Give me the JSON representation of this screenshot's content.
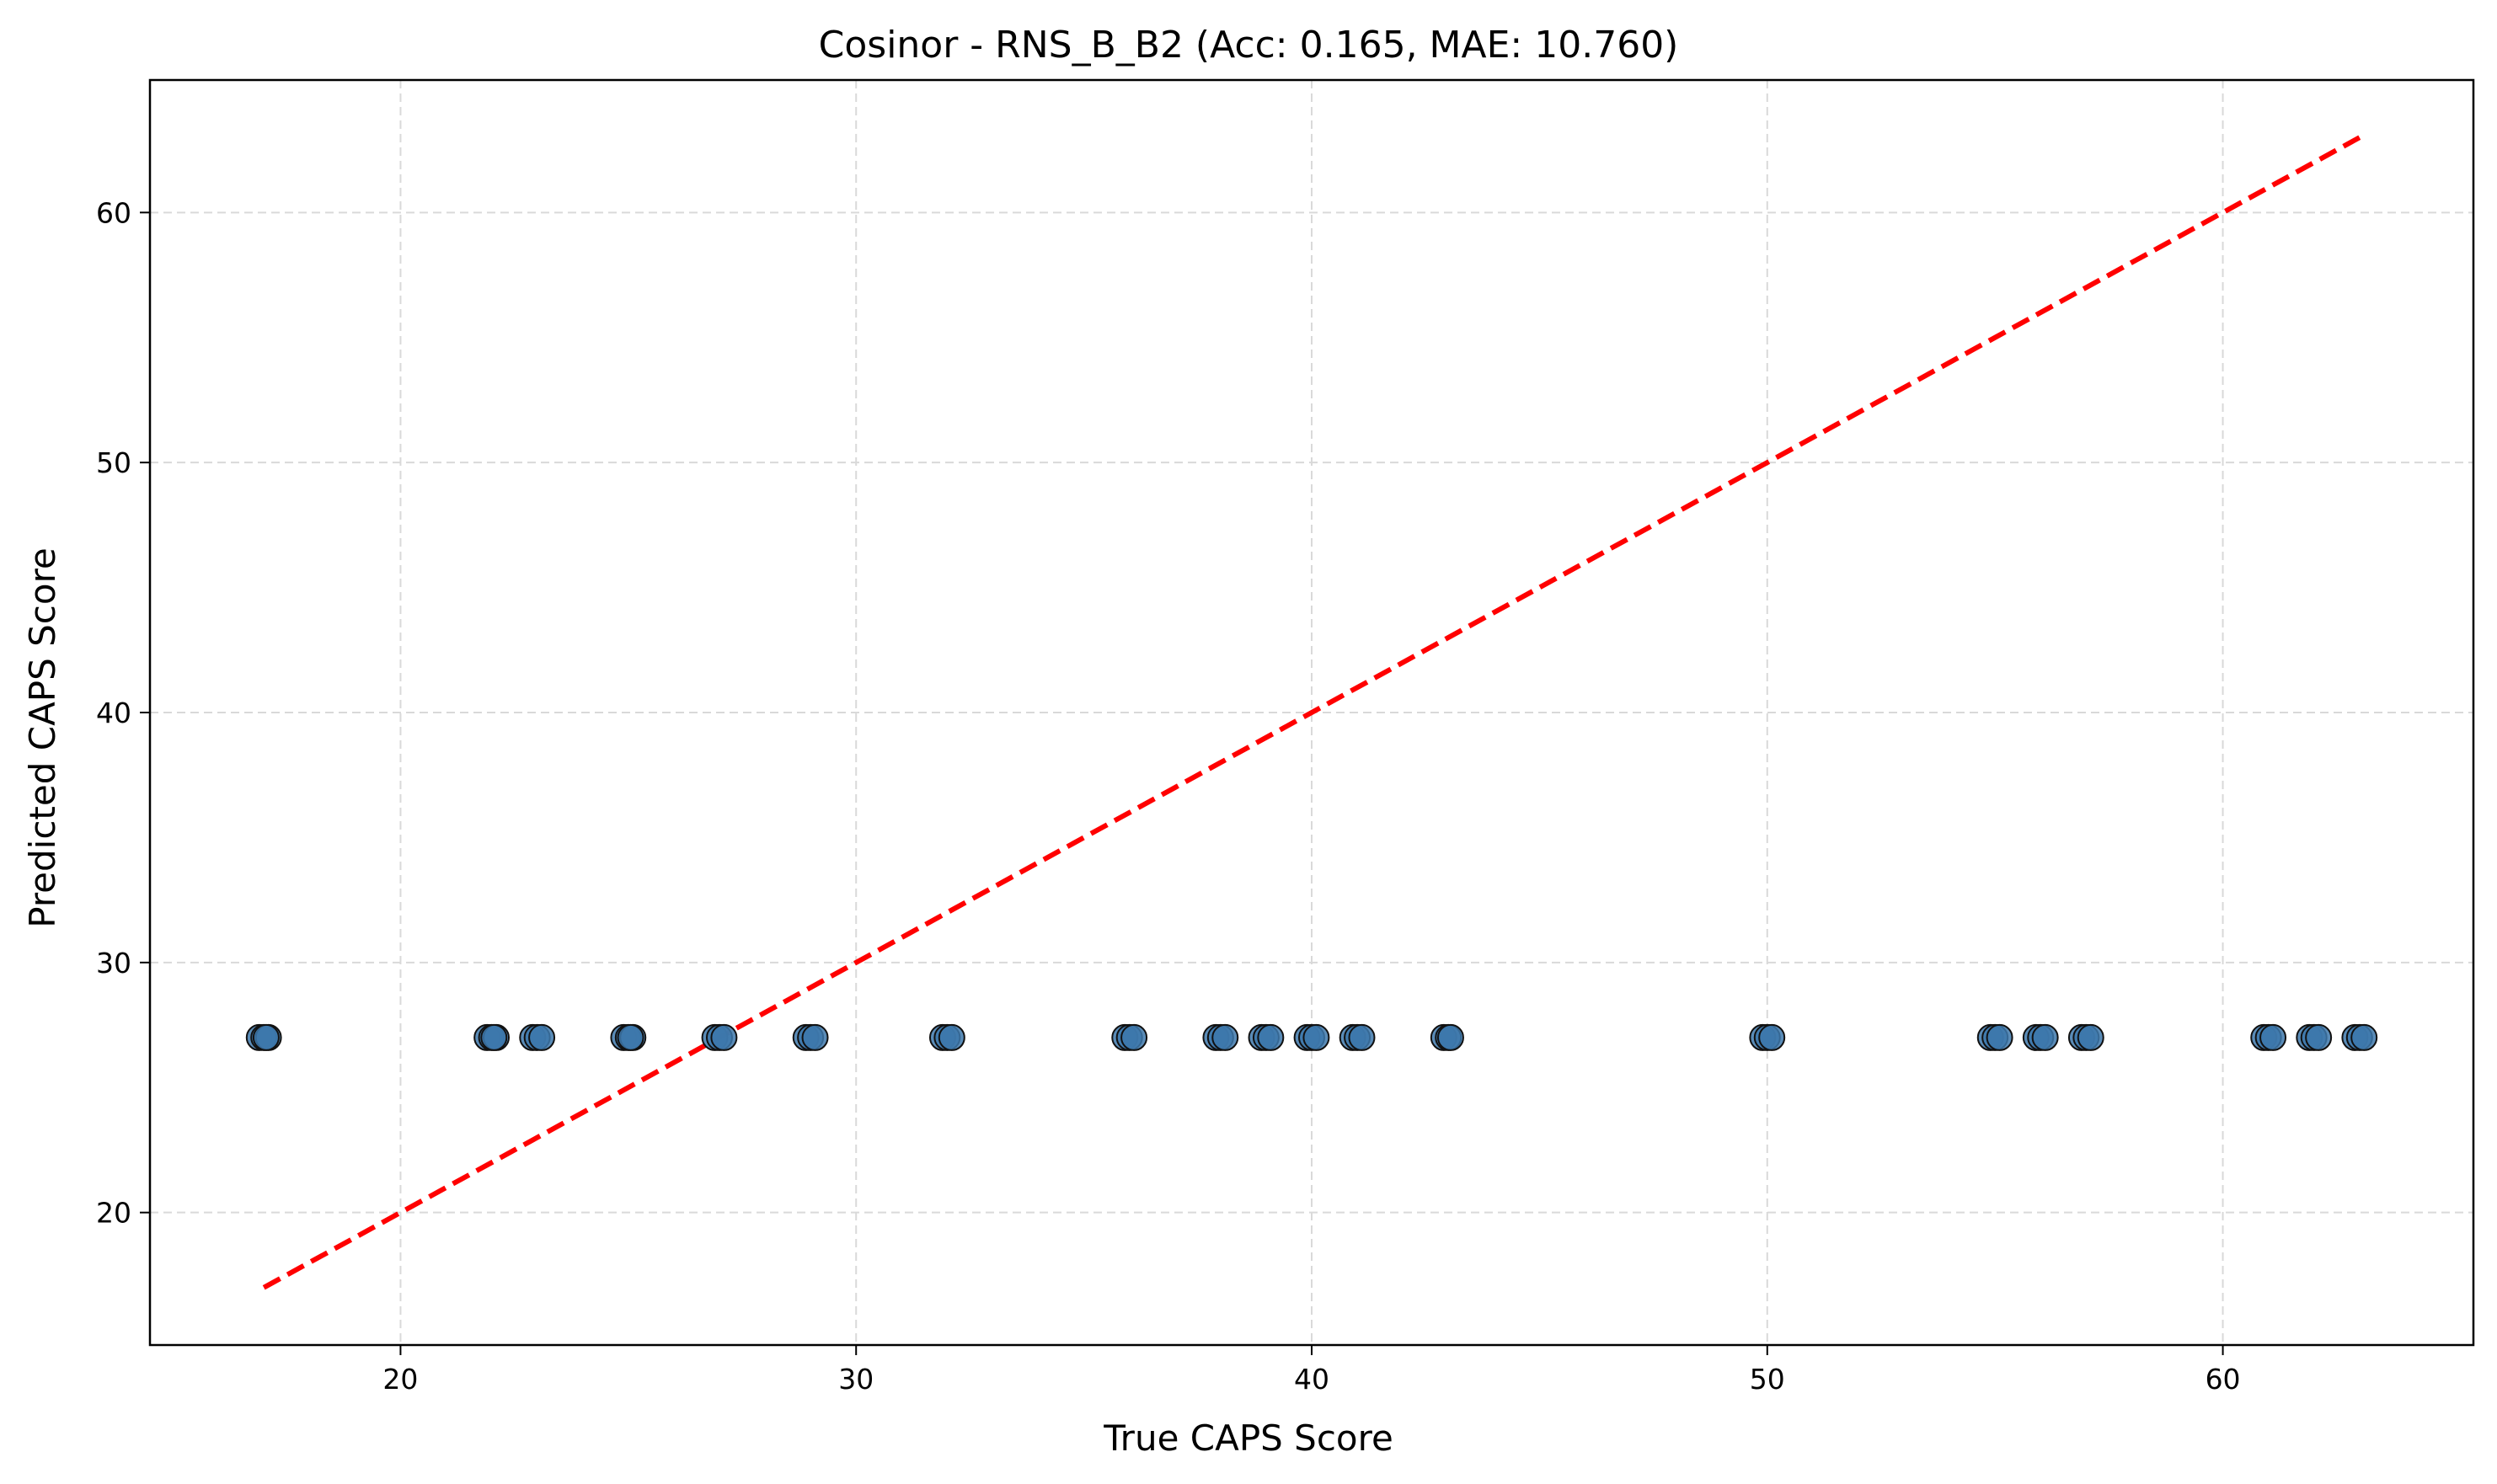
{
  "chart_data": {
    "type": "scatter",
    "title": "Cosinor - RNS_B_B2 (Acc: 0.165, MAE: 10.760)",
    "xlabel": "True CAPS Score",
    "ylabel": "Predicted CAPS Score",
    "xlim": [
      14.5,
      65.5
    ],
    "ylim": [
      14.7,
      65.3
    ],
    "xticks": [
      20,
      30,
      40,
      50,
      60
    ],
    "yticks": [
      20,
      30,
      40,
      50,
      60
    ],
    "grid": true,
    "colors": {
      "point_fill": "#3d78ac",
      "point_edge": "#111111",
      "reference_line": "#ff0000",
      "grid": "#d9d9d9"
    },
    "reference_line": {
      "style": "dashed",
      "from": [
        17,
        17
      ],
      "to": [
        63,
        63
      ]
    },
    "series": [
      {
        "x": [
          16.9,
          17.0,
          17.1,
          17.05,
          21.9,
          22.0,
          22.1,
          22.05,
          22.9,
          23.0,
          23.1,
          24.9,
          25.0,
          25.1,
          25.05,
          26.9,
          27.0,
          27.1,
          28.9,
          29.0,
          29.1,
          31.9,
          32.0,
          32.1,
          35.9,
          36.0,
          36.1,
          37.9,
          38.0,
          38.1,
          38.9,
          39.0,
          39.1,
          39.9,
          40.0,
          40.1,
          40.9,
          41.0,
          41.1,
          42.9,
          43.0,
          43.05,
          49.9,
          50.0,
          50.1,
          54.9,
          55.0,
          55.1,
          55.9,
          56.0,
          56.1,
          56.9,
          57.0,
          57.1,
          60.9,
          61.0,
          61.1,
          61.9,
          62.0,
          62.1,
          62.9,
          63.0,
          63.1
        ],
        "y": [
          27,
          27,
          27,
          27,
          27,
          27,
          27,
          27,
          27,
          27,
          27,
          27,
          27,
          27,
          27,
          27,
          27,
          27,
          27,
          27,
          27,
          27,
          27,
          27,
          27,
          27,
          27,
          27,
          27,
          27,
          27,
          27,
          27,
          27,
          27,
          27,
          27,
          27,
          27,
          27,
          27,
          27,
          27,
          27,
          27,
          27,
          27,
          27,
          27,
          27,
          27,
          27,
          27,
          27,
          27,
          27,
          27,
          27,
          27,
          27,
          27,
          27,
          27
        ]
      }
    ]
  }
}
